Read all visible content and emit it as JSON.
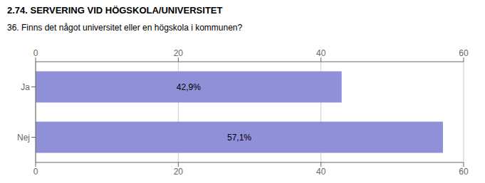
{
  "chart_data": {
    "type": "bar",
    "orientation": "horizontal",
    "title": "2.74. SERVERING VID HÖGSKOLA/UNIVERSITET",
    "subtitle": "36. Finns det något universitet eller en högskola i kommunen?",
    "categories": [
      "Ja",
      "Nej"
    ],
    "values": [
      42.9,
      57.1
    ],
    "value_labels": [
      "42,9%",
      "57,1%"
    ],
    "data_labels": true,
    "color": "#9090d8",
    "xlim": [
      0,
      60
    ],
    "xticks": [
      0,
      20,
      40,
      60
    ],
    "grid": true
  }
}
